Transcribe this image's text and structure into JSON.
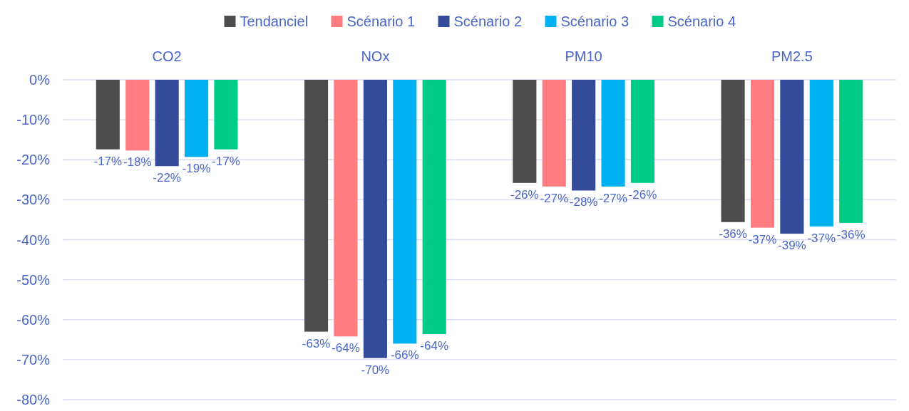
{
  "chart_data": {
    "type": "bar",
    "categories": [
      "CO2",
      "NOx",
      "PM10",
      "PM2.5"
    ],
    "series": [
      {
        "name": "Tendanciel",
        "color": "#4d4d4d",
        "values": [
          -17.4,
          -63.0,
          -25.8,
          -35.6
        ],
        "value_labels": [
          "-17%",
          "-63%",
          "-26%",
          "-36%"
        ]
      },
      {
        "name": "Scénario 1",
        "color": "#ff7c80",
        "values": [
          -17.7,
          -64.2,
          -26.7,
          -37.0
        ],
        "value_labels": [
          "-18%",
          "-64%",
          "-27%",
          "-37%"
        ]
      },
      {
        "name": "Scénario 2",
        "color": "#344b9a",
        "values": [
          -21.6,
          -69.6,
          -27.7,
          -38.5
        ],
        "value_labels": [
          "-22%",
          "-70%",
          "-28%",
          "-39%"
        ]
      },
      {
        "name": "Scénario 3",
        "color": "#00b0f0",
        "values": [
          -19.3,
          -66.0,
          -26.7,
          -36.7
        ],
        "value_labels": [
          "-19%",
          "-66%",
          "-27%",
          "-37%"
        ]
      },
      {
        "name": "Scénario 4",
        "color": "#00cc88",
        "values": [
          -17.4,
          -63.6,
          -25.8,
          -35.8
        ],
        "value_labels": [
          "-17%",
          "-64%",
          "-26%",
          "-36%"
        ]
      }
    ],
    "ylim": [
      -80,
      0
    ],
    "yticks": [
      {
        "value": 0,
        "label": "0%"
      },
      {
        "value": -10,
        "label": "-10%"
      },
      {
        "value": -20,
        "label": "-20%"
      },
      {
        "value": -30,
        "label": "-30%"
      },
      {
        "value": -40,
        "label": "-40%"
      },
      {
        "value": -50,
        "label": "-50%"
      },
      {
        "value": -60,
        "label": "-60%"
      },
      {
        "value": -70,
        "label": "-70%"
      },
      {
        "value": -80,
        "label": "-80%"
      }
    ],
    "grid": "y",
    "legend": "top"
  }
}
